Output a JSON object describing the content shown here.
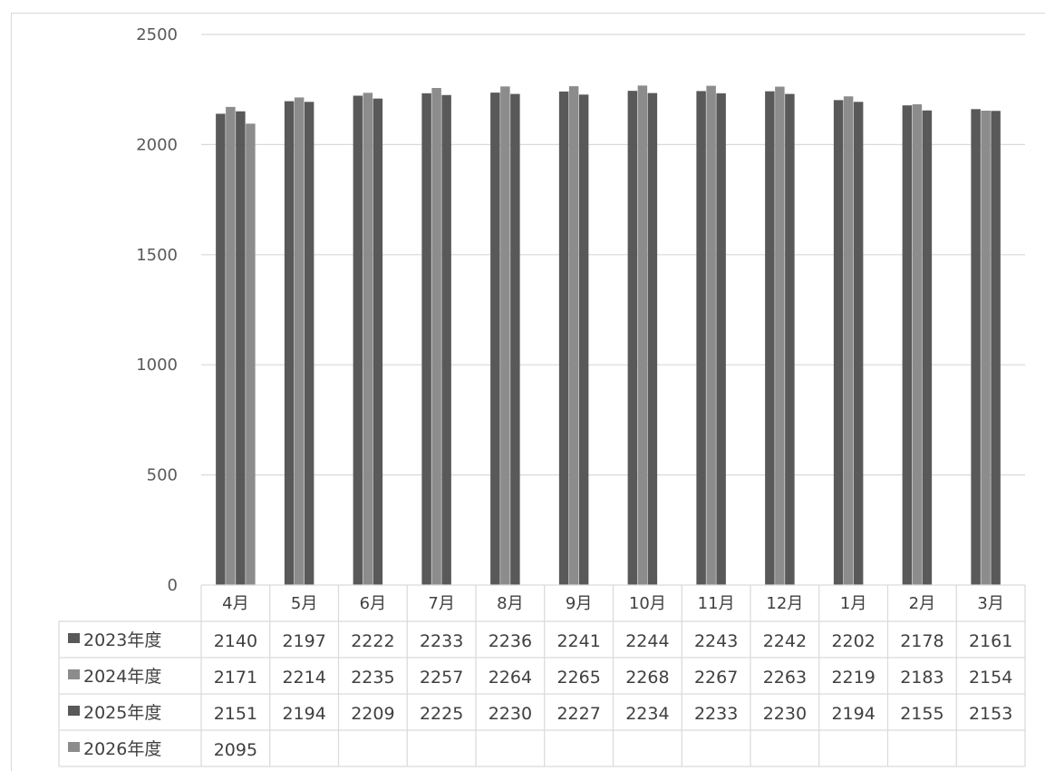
{
  "chart_data": {
    "type": "bar",
    "title": "",
    "xlabel": "",
    "ylabel": "",
    "ylim": [
      0,
      2500
    ],
    "yticks": [
      0,
      500,
      1000,
      1500,
      2000,
      2500
    ],
    "grid": true,
    "legend_placement": "data-table-left",
    "categories": [
      "4月",
      "5月",
      "6月",
      "7月",
      "8月",
      "9月",
      "10月",
      "11月",
      "12月",
      "1月",
      "2月",
      "3月"
    ],
    "series": [
      {
        "name": "2023年度",
        "color": "#595959",
        "values": [
          2140,
          2197,
          2222,
          2233,
          2236,
          2241,
          2244,
          2243,
          2242,
          2202,
          2178,
          2161
        ]
      },
      {
        "name": "2024年度",
        "color": "#8c8c8c",
        "values": [
          2171,
          2214,
          2235,
          2257,
          2264,
          2265,
          2268,
          2267,
          2263,
          2219,
          2183,
          2154
        ]
      },
      {
        "name": "2025年度",
        "color": "#595959",
        "values": [
          2151,
          2194,
          2209,
          2225,
          2230,
          2227,
          2234,
          2233,
          2230,
          2194,
          2155,
          2153
        ]
      },
      {
        "name": "2026年度",
        "color": "#8c8c8c",
        "values": [
          2095,
          null,
          null,
          null,
          null,
          null,
          null,
          null,
          null,
          null,
          null,
          null
        ]
      }
    ]
  }
}
